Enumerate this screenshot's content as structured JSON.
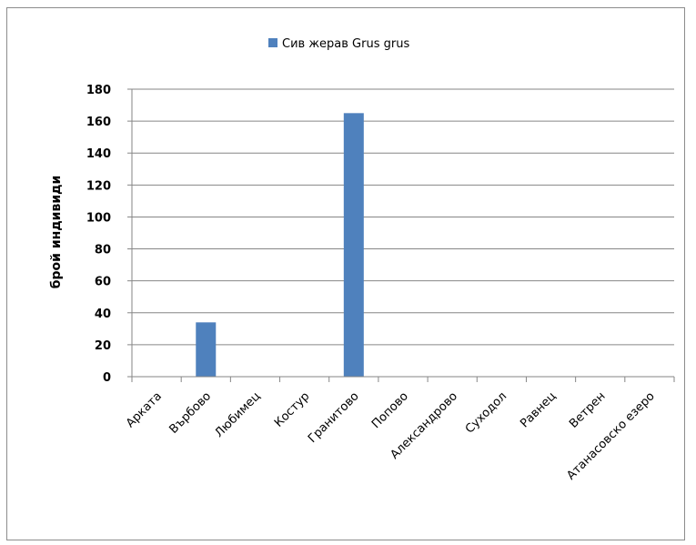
{
  "chart_data": {
    "type": "bar",
    "categories": [
      "Арката",
      "Върбово",
      "Любимец",
      "Костур",
      "Гранитово",
      "Попово",
      "Александрово",
      "Суходол",
      "Равнец",
      "Ветрен",
      "Атанасовско езеро"
    ],
    "series": [
      {
        "name": "Сив жерав Grus grus",
        "values": [
          0,
          34,
          0,
          0,
          165,
          0,
          0,
          0,
          0,
          0,
          0
        ],
        "color": "#4f81bd"
      }
    ],
    "ylabel": "брой индивиди",
    "xlabel": "",
    "title": "",
    "ylim": [
      0,
      180
    ],
    "yticks": [
      0,
      20,
      40,
      60,
      80,
      100,
      120,
      140,
      160,
      180
    ],
    "grid": true,
    "legend": "top-center"
  }
}
